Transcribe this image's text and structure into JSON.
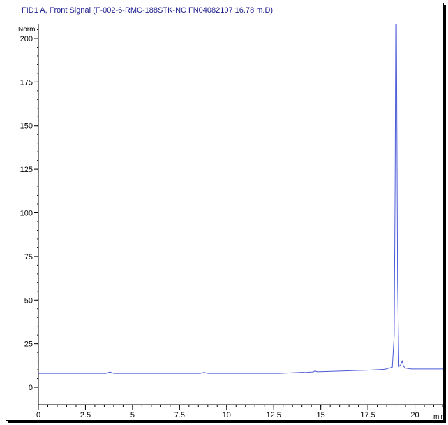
{
  "chart_data": {
    "type": "line",
    "title": "FID1 A, Front Signal (F-002-6-RMC-188STK-NC FN04082107 16.78 m.D)",
    "y_unit_label": "Norm.",
    "x_unit_label": "min",
    "xlim": [
      0,
      21.5
    ],
    "ylim": [
      -10,
      208
    ],
    "x_ticks": [
      0,
      2.5,
      5,
      7.5,
      10,
      12.5,
      15,
      17.5,
      20
    ],
    "x_tick_labels": [
      "0",
      "2.5",
      "5",
      "7.5",
      "10",
      "12.5",
      "15",
      "17.5",
      "20"
    ],
    "y_ticks": [
      0,
      25,
      50,
      75,
      100,
      125,
      150,
      175,
      200
    ],
    "y_tick_labels": [
      "0",
      "25",
      "50",
      "75",
      "100",
      "125",
      "150",
      "175",
      "200"
    ],
    "line_color": "#4c5ad8",
    "series": [
      {
        "x": [
          0,
          3.6,
          3.8,
          4.0,
          8.6,
          8.8,
          9.0,
          12.8,
          14.0,
          14.2,
          14.4,
          14.6,
          14.7,
          14.8,
          16.0,
          17.5,
          18.4,
          18.8,
          18.9,
          18.95,
          18.98,
          19.02,
          19.08,
          19.15,
          19.25,
          19.32,
          19.4,
          19.5,
          19.8,
          20.5,
          21.5
        ],
        "y": [
          8,
          8,
          8.8,
          8,
          8,
          8.6,
          8,
          8,
          8.6,
          8.5,
          8.7,
          8.8,
          9.4,
          8.9,
          9.3,
          9.8,
          10.3,
          11.5,
          30,
          120,
          210,
          210,
          60,
          12,
          13,
          15,
          12,
          11,
          10.5,
          10.5,
          10.5
        ]
      }
    ]
  }
}
